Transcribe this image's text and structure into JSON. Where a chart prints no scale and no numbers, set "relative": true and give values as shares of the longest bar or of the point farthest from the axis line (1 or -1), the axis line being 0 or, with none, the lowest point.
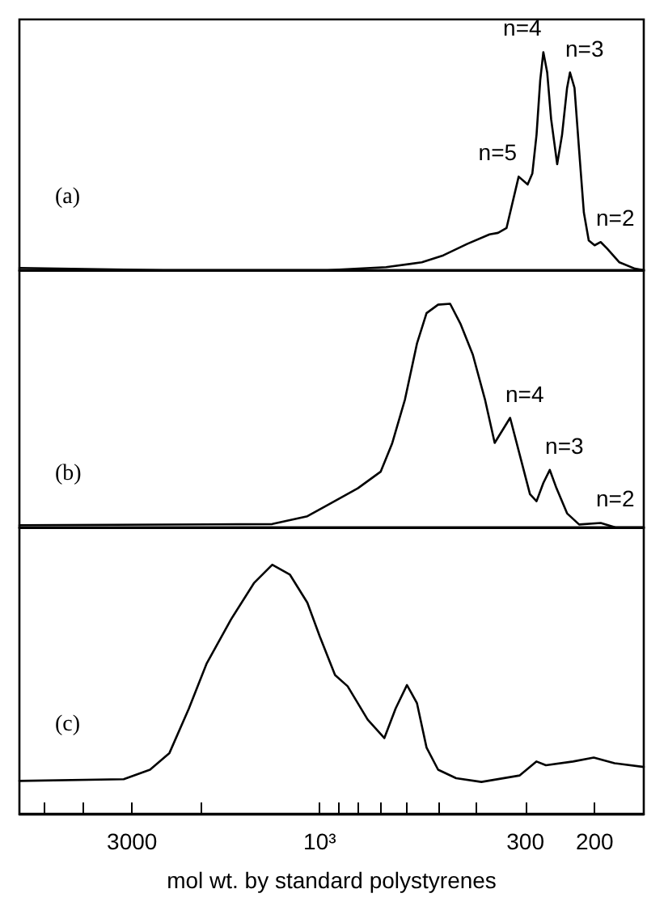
{
  "chart_data": [
    {
      "type": "line",
      "relative": true,
      "color": "#000000",
      "xlim": [
        5800,
        150
      ],
      "tick_labels": false,
      "log": "x",
      "x": [
        5800,
        2500,
        1320,
        955,
        678,
        550,
        485,
        421,
        370,
        352,
        335,
        312,
        296,
        288,
        281,
        275,
        270,
        264,
        258,
        249,
        242,
        235,
        231,
        225,
        219,
        213,
        207,
        200,
        193,
        186,
        173,
        158,
        150
      ],
      "values": [
        0.01,
        0.0,
        0.0,
        0.0,
        0.014,
        0.036,
        0.068,
        0.121,
        0.164,
        0.171,
        0.193,
        0.429,
        0.393,
        0.443,
        0.621,
        0.871,
        1.0,
        0.907,
        0.693,
        0.486,
        0.621,
        0.836,
        0.907,
        0.836,
        0.55,
        0.264,
        0.136,
        0.114,
        0.129,
        0.1,
        0.036,
        0.007,
        0.0
      ],
      "annotations": [
        "(a)",
        {
          "text": "n=5",
          "x": 312,
          "y": 0.429
        },
        {
          "text": "n=4",
          "x": 270,
          "y": 1.0
        },
        {
          "text": "n=3",
          "x": 231,
          "y": 0.907
        },
        {
          "text": "n=2",
          "x": 193,
          "y": 0.129
        }
      ]
    },
    {
      "type": "line",
      "relative": true,
      "color": "#000000",
      "xlim": [
        5800,
        150
      ],
      "tick_labels": false,
      "log": "x",
      "x": [
        5800,
        1320,
        1075,
        955,
        800,
        700,
        655,
        607,
        566,
        535,
        500,
        466,
        438,
        408,
        380,
        359,
        328,
        310,
        292,
        281,
        270,
        260,
        250,
        235,
        219,
        193,
        177,
        150
      ],
      "values": [
        0.01,
        0.015,
        0.05,
        0.1,
        0.175,
        0.249,
        0.373,
        0.572,
        0.821,
        0.958,
        0.996,
        1.0,
        0.908,
        0.772,
        0.572,
        0.378,
        0.49,
        0.324,
        0.149,
        0.117,
        0.199,
        0.257,
        0.175,
        0.063,
        0.013,
        0.02,
        0.0,
        0.0
      ],
      "annotations": [
        "(b)",
        {
          "text": "n=4",
          "x": 328,
          "y": 0.49
        },
        {
          "text": "n=3",
          "x": 260,
          "y": 0.257
        },
        {
          "text": "n=2",
          "x": 193,
          "y": 0.02
        }
      ]
    },
    {
      "type": "line",
      "relative": true,
      "color": "#000000",
      "xlim": [
        5800,
        150
      ],
      "tick_labels": "x",
      "log": "x",
      "xlabel": "mol wt. by standard polystyrenes",
      "xticks": [
        {
          "value": 5000,
          "label": null
        },
        {
          "value": 4000,
          "label": null
        },
        3000,
        {
          "value": 2000,
          "label": null
        },
        {
          "value": 1000,
          "label": "10³"
        },
        {
          "value": 900,
          "label": null
        },
        {
          "value": 800,
          "label": null
        },
        {
          "value": 700,
          "label": null
        },
        {
          "value": 600,
          "label": null
        },
        {
          "value": 500,
          "label": null
        },
        {
          "value": 400,
          "label": null
        },
        300,
        200
      ],
      "x": [
        5800,
        3150,
        2700,
        2410,
        2150,
        1940,
        1680,
        1470,
        1320,
        1190,
        1075,
        1000,
        914,
        849,
        755,
        685,
        641,
        600,
        566,
        535,
        500,
        450,
        388,
        310,
        281,
        266,
        227,
        201,
        178,
        150
      ],
      "values": [
        0.132,
        0.139,
        0.177,
        0.244,
        0.423,
        0.602,
        0.781,
        0.926,
        1.0,
        0.96,
        0.848,
        0.713,
        0.557,
        0.512,
        0.378,
        0.304,
        0.423,
        0.517,
        0.445,
        0.266,
        0.177,
        0.143,
        0.128,
        0.154,
        0.21,
        0.195,
        0.21,
        0.226,
        0.203,
        0.188
      ],
      "annotations": [
        "(c)"
      ]
    }
  ]
}
